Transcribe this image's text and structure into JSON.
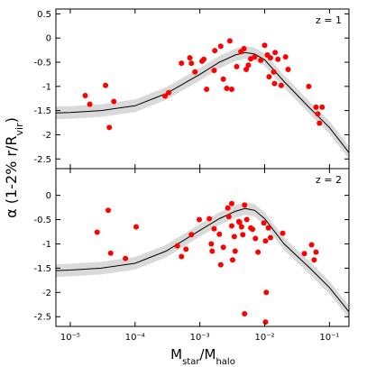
{
  "chart_data": [
    {
      "type": "scatter",
      "annotation": "z = 1",
      "ylabel": [
        "α (1-2% r/R",
        "vir",
        ")"
      ],
      "xlim": [
        6e-06,
        0.2
      ],
      "ylim": [
        -2.7,
        0.6
      ],
      "log_x": true,
      "yticks": [
        0.5,
        0,
        -0.5,
        -1,
        -1.5,
        -2,
        -2.5
      ],
      "points": {
        "color": "#ff0000",
        "x": [
          1.7e-05,
          2e-05,
          3.5e-05,
          4e-05,
          4.7e-05,
          0.00029,
          0.00033,
          0.00052,
          0.0007,
          0.00074,
          0.00084,
          0.00108,
          0.00115,
          0.00127,
          0.00166,
          0.0017,
          0.0021,
          0.0023,
          0.0026,
          0.0029,
          0.0031,
          0.0037,
          0.0043,
          0.0048,
          0.0052,
          0.0056,
          0.0061,
          0.007,
          0.0087,
          0.01,
          0.011,
          0.0117,
          0.0123,
          0.0138,
          0.0142,
          0.0145,
          0.016,
          0.018,
          0.021,
          0.023,
          0.048,
          0.062,
          0.066,
          0.07,
          0.077
        ],
        "values": [
          -1.19,
          -1.37,
          -0.98,
          -1.85,
          -1.31,
          -1.2,
          -1.13,
          -0.52,
          -0.41,
          -0.52,
          -0.7,
          -0.48,
          -0.44,
          -1.06,
          -0.67,
          -0.26,
          -0.17,
          -0.85,
          -1.04,
          -0.06,
          -1.06,
          -0.59,
          -0.28,
          -0.22,
          -0.65,
          -0.56,
          -0.43,
          -0.39,
          -0.46,
          -0.15,
          -0.35,
          -0.8,
          -0.41,
          -0.7,
          -0.94,
          -0.3,
          -0.44,
          -0.98,
          -0.39,
          -0.65,
          -1.0,
          -1.43,
          -1.57,
          -1.76,
          -1.43
        ]
      },
      "model": {
        "color": "#000000",
        "band_color": "#d9d9d9",
        "band": 0.13,
        "x": [
          6e-06,
          1e-05,
          3e-05,
          0.0001,
          0.0003,
          0.001,
          0.002,
          0.0035,
          0.005,
          0.007,
          0.01,
          0.02,
          0.05,
          0.1,
          0.2
        ],
        "values": [
          -1.55,
          -1.54,
          -1.5,
          -1.4,
          -1.15,
          -0.75,
          -0.5,
          -0.35,
          -0.3,
          -0.33,
          -0.45,
          -0.9,
          -1.45,
          -1.85,
          -2.37
        ]
      }
    },
    {
      "type": "scatter",
      "annotation": "z = 2",
      "xlabel": [
        "M",
        "star",
        "/M",
        "halo"
      ],
      "xlim": [
        6e-06,
        0.2
      ],
      "ylim": [
        -2.7,
        0.55
      ],
      "log_x": true,
      "yticks": [
        0,
        -0.5,
        -1,
        -1.5,
        -2,
        -2.5
      ],
      "xticks": [
        {
          "value": 1e-05,
          "label": "10⁻⁵"
        },
        {
          "value": 0.0001,
          "label": "10⁻⁴"
        },
        {
          "value": 0.001,
          "label": "10⁻³"
        },
        {
          "value": 0.01,
          "label": "10⁻²"
        },
        {
          "value": 0.1,
          "label": "10⁻¹"
        }
      ],
      "points": {
        "color": "#ff0000",
        "x": [
          2.6e-05,
          3.85e-05,
          4.2e-05,
          7.1e-05,
          0.000104,
          0.00045,
          0.00052,
          0.00061,
          0.00074,
          0.00098,
          0.0014,
          0.0015,
          0.00155,
          0.00166,
          0.002,
          0.0021,
          0.0023,
          0.0027,
          0.0028,
          0.0031,
          0.0031,
          0.0032,
          0.0034,
          0.0035,
          0.004,
          0.0041,
          0.0044,
          0.0046,
          0.0049,
          0.0049,
          0.0053,
          0.0061,
          0.0065,
          0.0072,
          0.0079,
          0.0097,
          0.0103,
          0.0106,
          0.0103,
          0.0114,
          0.0123,
          0.019,
          0.041,
          0.053,
          0.058,
          0.062
        ],
        "values": [
          -0.76,
          -0.31,
          -1.19,
          -1.3,
          -0.65,
          -1.04,
          -1.26,
          -1.11,
          -0.81,
          -0.5,
          -0.48,
          -1.0,
          -1.15,
          -0.69,
          -0.8,
          -1.43,
          -1.07,
          -0.26,
          -0.44,
          -0.17,
          -0.63,
          -1.33,
          -0.85,
          -1.15,
          -0.54,
          -0.56,
          -0.65,
          -0.81,
          -0.2,
          -2.44,
          -0.5,
          -0.67,
          -0.7,
          -0.89,
          -1.17,
          -0.57,
          -0.94,
          -2.0,
          -2.61,
          -0.67,
          -0.87,
          -0.78,
          -1.2,
          -1.02,
          -1.33,
          -1.17
        ]
      },
      "model": {
        "color": "#000000",
        "band_color": "#d9d9d9",
        "band": 0.13,
        "x": [
          6e-06,
          1e-05,
          3e-05,
          0.0001,
          0.0003,
          0.001,
          0.002,
          0.0035,
          0.005,
          0.007,
          0.01,
          0.02,
          0.05,
          0.1,
          0.2
        ],
        "values": [
          -1.55,
          -1.54,
          -1.5,
          -1.4,
          -1.15,
          -0.72,
          -0.48,
          -0.33,
          -0.27,
          -0.31,
          -0.48,
          -1.0,
          -1.5,
          -1.9,
          -2.4
        ]
      }
    }
  ]
}
